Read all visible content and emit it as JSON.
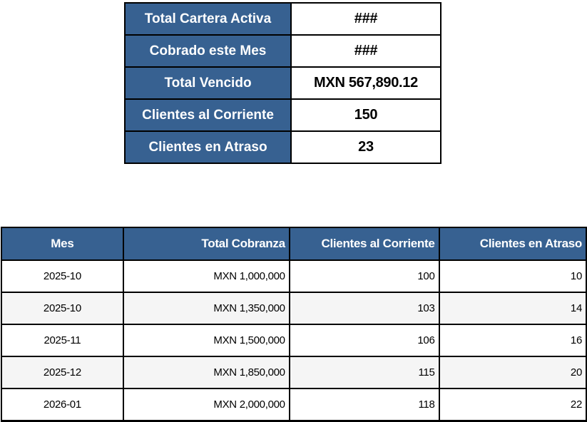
{
  "colors": {
    "header_blue": "#376191",
    "alt_row_gray": "#f5f5f5",
    "border_black": "#000000",
    "label_text": "#ffffff",
    "value_text": "#000000"
  },
  "summary_table": {
    "rows": [
      {
        "label": "Total Cartera Activa",
        "value": "###"
      },
      {
        "label": "Cobrado este Mes",
        "value": "###"
      },
      {
        "label": "Total Vencido",
        "value": "MXN 567,890.12"
      },
      {
        "label": "Clientes al Corriente",
        "value": "150"
      },
      {
        "label": "Clientes en Atraso",
        "value": "23"
      }
    ]
  },
  "history_table": {
    "headers": [
      "Mes",
      "Total Cobranza",
      "Clientes al Corriente",
      "Clientes en Atraso"
    ],
    "rows": [
      [
        "2025-10",
        "MXN 1,000,000",
        "100",
        "10"
      ],
      [
        "2025-10",
        "MXN 1,350,000",
        "103",
        "14"
      ],
      [
        "2025-11",
        "MXN 1,500,000",
        "106",
        "16"
      ],
      [
        "2025-12",
        "MXN 1,850,000",
        "115",
        "20"
      ],
      [
        "2026-01",
        "MXN 2,000,000",
        "118",
        "22"
      ]
    ]
  }
}
